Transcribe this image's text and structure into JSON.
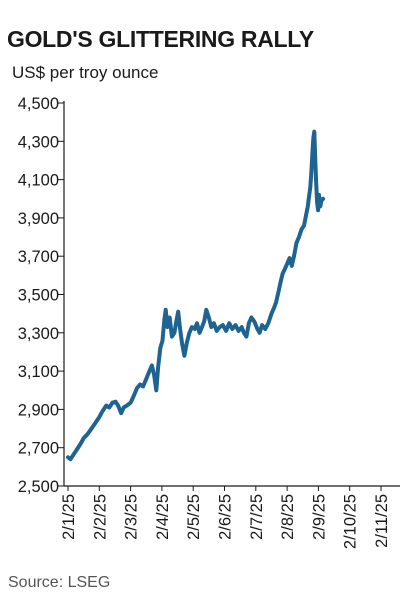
{
  "chart_data": {
    "type": "line",
    "title": "GOLD'S GLITTERING RALLY",
    "subtitle": "US$ per troy ounce",
    "source": "Source: LSEG",
    "ylabel": "",
    "xlabel": "",
    "ylim": [
      2500,
      4500
    ],
    "yticks": [
      2500,
      2700,
      2900,
      3100,
      3300,
      3500,
      3700,
      3900,
      4100,
      4300,
      4500
    ],
    "ytick_labels": [
      "2,500",
      "2,700",
      "2,900",
      "3,100",
      "3,300",
      "3,500",
      "3,700",
      "3,900",
      "4,100",
      "4,300",
      "4,500"
    ],
    "xticks": [
      "2/1/25",
      "2/2/25",
      "2/3/25",
      "2/4/25",
      "2/5/25",
      "2/6/25",
      "2/7/25",
      "2/8/25",
      "2/9/25",
      "2/10/25",
      "2/11/25"
    ],
    "grid": false,
    "line_color": "#1f6391",
    "series": [
      {
        "values": [
          [
            0.0,
            2650
          ],
          [
            0.08,
            2640
          ],
          [
            0.18,
            2665
          ],
          [
            0.28,
            2690
          ],
          [
            0.4,
            2720
          ],
          [
            0.5,
            2750
          ],
          [
            0.62,
            2770
          ],
          [
            0.75,
            2800
          ],
          [
            0.88,
            2830
          ],
          [
            1.0,
            2860
          ],
          [
            1.1,
            2890
          ],
          [
            1.22,
            2920
          ],
          [
            1.32,
            2910
          ],
          [
            1.42,
            2935
          ],
          [
            1.52,
            2940
          ],
          [
            1.6,
            2920
          ],
          [
            1.7,
            2880
          ],
          [
            1.78,
            2910
          ],
          [
            1.88,
            2920
          ],
          [
            2.0,
            2935
          ],
          [
            2.1,
            2970
          ],
          [
            2.2,
            3010
          ],
          [
            2.3,
            3030
          ],
          [
            2.4,
            3020
          ],
          [
            2.5,
            3060
          ],
          [
            2.6,
            3100
          ],
          [
            2.68,
            3130
          ],
          [
            2.75,
            3080
          ],
          [
            2.82,
            3000
          ],
          [
            2.88,
            3120
          ],
          [
            2.95,
            3220
          ],
          [
            3.02,
            3260
          ],
          [
            3.08,
            3370
          ],
          [
            3.12,
            3420
          ],
          [
            3.18,
            3330
          ],
          [
            3.25,
            3380
          ],
          [
            3.32,
            3280
          ],
          [
            3.4,
            3300
          ],
          [
            3.46,
            3360
          ],
          [
            3.52,
            3410
          ],
          [
            3.58,
            3320
          ],
          [
            3.65,
            3240
          ],
          [
            3.72,
            3180
          ],
          [
            3.8,
            3250
          ],
          [
            3.88,
            3300
          ],
          [
            3.96,
            3330
          ],
          [
            4.05,
            3320
          ],
          [
            4.12,
            3350
          ],
          [
            4.2,
            3300
          ],
          [
            4.28,
            3330
          ],
          [
            4.35,
            3360
          ],
          [
            4.42,
            3420
          ],
          [
            4.5,
            3380
          ],
          [
            4.58,
            3330
          ],
          [
            4.66,
            3350
          ],
          [
            4.75,
            3310
          ],
          [
            4.85,
            3330
          ],
          [
            4.95,
            3340
          ],
          [
            5.05,
            3310
          ],
          [
            5.15,
            3350
          ],
          [
            5.25,
            3320
          ],
          [
            5.35,
            3340
          ],
          [
            5.45,
            3310
          ],
          [
            5.55,
            3330
          ],
          [
            5.62,
            3300
          ],
          [
            5.7,
            3280
          ],
          [
            5.78,
            3350
          ],
          [
            5.86,
            3380
          ],
          [
            5.95,
            3360
          ],
          [
            6.05,
            3320
          ],
          [
            6.12,
            3300
          ],
          [
            6.2,
            3340
          ],
          [
            6.3,
            3320
          ],
          [
            6.4,
            3350
          ],
          [
            6.5,
            3400
          ],
          [
            6.58,
            3430
          ],
          [
            6.65,
            3460
          ],
          [
            6.72,
            3510
          ],
          [
            6.8,
            3570
          ],
          [
            6.86,
            3610
          ],
          [
            6.92,
            3630
          ],
          [
            7.0,
            3660
          ],
          [
            7.08,
            3690
          ],
          [
            7.15,
            3650
          ],
          [
            7.22,
            3700
          ],
          [
            7.3,
            3770
          ],
          [
            7.38,
            3800
          ],
          [
            7.46,
            3840
          ],
          [
            7.54,
            3860
          ],
          [
            7.6,
            3910
          ],
          [
            7.66,
            3960
          ],
          [
            7.7,
            4010
          ],
          [
            7.74,
            4060
          ],
          [
            7.78,
            4150
          ],
          [
            7.81,
            4250
          ],
          [
            7.84,
            4320
          ],
          [
            7.87,
            4350
          ],
          [
            7.9,
            4200
          ],
          [
            7.93,
            4080
          ],
          [
            7.96,
            3980
          ],
          [
            7.99,
            3940
          ],
          [
            8.02,
            4020
          ],
          [
            8.06,
            3960
          ],
          [
            8.1,
            3990
          ],
          [
            8.15,
            4000
          ]
        ]
      }
    ]
  }
}
